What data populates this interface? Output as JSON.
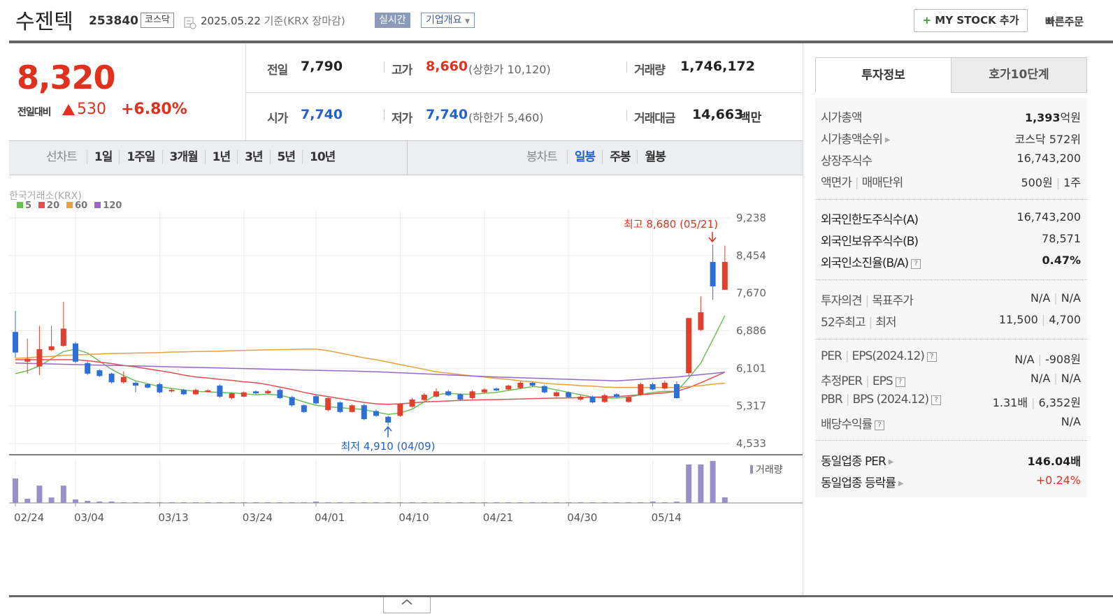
{
  "header": {
    "name": "수젠텍",
    "code": "253840",
    "market": "코스닥",
    "date": "2025.05.22",
    "basis": "기준(KRX 장마감)",
    "realtime_button": "실시간",
    "company_button": "기업개요",
    "mystock_button": "MY STOCK 추가",
    "quick_order": "빠른주문"
  },
  "quote": {
    "price": "8,320",
    "change_label": "전일대비",
    "change": "530",
    "change_rate": "+6.80%",
    "stats": [
      {
        "label": "전일",
        "value": "7,790"
      },
      {
        "label": "고가",
        "value": "8,660",
        "note": "(상한가 10,120)",
        "color": "#e0301e"
      },
      {
        "label": "거래량",
        "value": "1,746,172"
      },
      {
        "label": "시가",
        "value": "7,740",
        "color": "#2562c8"
      },
      {
        "label": "저가",
        "value": "7,740",
        "note": "(하한가 5,460)",
        "color": "#2562c8"
      },
      {
        "label": "거래대금",
        "value": "14,663",
        "unit": "백만"
      }
    ]
  },
  "chart_tabs": {
    "line_label": "선차트",
    "line_periods": [
      "1일",
      "1주일",
      "3개월",
      "1년",
      "3년",
      "5년",
      "10년"
    ],
    "candle_label": "봉차트",
    "candle_periods": [
      "일봉",
      "주봉",
      "월봉"
    ]
  },
  "chart": {
    "type": "candlestick",
    "source": "한국거래소(KRX)",
    "volume_label": "거래량",
    "annotations": {
      "high": "최고 8,680 (05/21)",
      "low": "최저 4,910 (04/09)"
    },
    "up_color": "#e0402d",
    "down_color": "#2e6fd5",
    "volume_color": "#9a8fc8",
    "categories": [
      "02/24",
      null,
      null,
      null,
      null,
      "03/04",
      null,
      null,
      null,
      null,
      null,
      null,
      "03/13",
      null,
      null,
      null,
      null,
      null,
      null,
      "03/24",
      null,
      null,
      null,
      null,
      null,
      "04/01",
      null,
      null,
      null,
      null,
      null,
      null,
      "04/10",
      null,
      null,
      null,
      null,
      null,
      null,
      "04/21",
      null,
      null,
      null,
      null,
      null,
      null,
      "04/30",
      null,
      null,
      null,
      null,
      null,
      null,
      "05/14",
      null,
      null,
      null,
      null,
      null,
      null
    ],
    "open": [
      6860,
      6240,
      6140,
      6480,
      6570,
      6620,
      6210,
      6060,
      5990,
      5810,
      5800,
      5770,
      5770,
      5620,
      5650,
      5560,
      5610,
      5740,
      5480,
      5510,
      5620,
      5580,
      5650,
      5500,
      5330,
      5520,
      5230,
      5390,
      5190,
      5330,
      5210,
      5090,
      5110,
      5300,
      5440,
      5510,
      5620,
      5560,
      5480,
      5600,
      5680,
      5660,
      5690,
      5800,
      5730,
      5520,
      5600,
      5450,
      5510,
      5400,
      5560,
      5400,
      5550,
      5770,
      5680,
      5770,
      6000,
      6900,
      8320,
      7740
    ],
    "close": [
      6430,
      6300,
      6500,
      6560,
      6930,
      6240,
      5990,
      5940,
      5810,
      5920,
      5740,
      5700,
      5600,
      5650,
      5560,
      5650,
      5640,
      5510,
      5580,
      5600,
      5580,
      5630,
      5480,
      5330,
      5190,
      5370,
      5480,
      5190,
      5330,
      5040,
      5110,
      4970,
      5360,
      5450,
      5550,
      5620,
      5540,
      5450,
      5620,
      5660,
      5640,
      5740,
      5800,
      5740,
      5600,
      5600,
      5500,
      5510,
      5390,
      5540,
      5500,
      5500,
      5770,
      5660,
      5800,
      5480,
      7150,
      7270,
      7810,
      8320
    ],
    "high": [
      7300,
      6720,
      6990,
      6990,
      7490,
      6650,
      6240,
      6080,
      6010,
      6040,
      5830,
      5790,
      5800,
      5680,
      5670,
      5680,
      5660,
      5760,
      5600,
      5620,
      5640,
      5660,
      5680,
      5520,
      5350,
      5560,
      5500,
      5410,
      5350,
      5360,
      5240,
      5110,
      5380,
      5480,
      5580,
      5680,
      5650,
      5580,
      5650,
      5690,
      5700,
      5760,
      5830,
      5820,
      5760,
      5630,
      5620,
      5540,
      5530,
      5570,
      5580,
      5530,
      5800,
      5800,
      5850,
      5830,
      7150,
      7600,
      8680,
      8660
    ],
    "low": [
      6320,
      5990,
      5960,
      6460,
      6550,
      6210,
      5960,
      5920,
      5780,
      5780,
      5600,
      5680,
      5580,
      5600,
      5540,
      5540,
      5600,
      5490,
      5450,
      5500,
      5560,
      5570,
      5460,
      5300,
      5170,
      5350,
      5200,
      5170,
      5180,
      5020,
      5090,
      4910,
      5090,
      5280,
      5420,
      5490,
      5520,
      5430,
      5460,
      5580,
      5620,
      5640,
      5680,
      5720,
      5580,
      5500,
      5480,
      5430,
      5370,
      5380,
      5480,
      5380,
      5530,
      5640,
      5660,
      5460,
      5950,
      6880,
      7530,
      7740
    ],
    "volume": [
      7600000,
      1300000,
      5400000,
      1700000,
      5400000,
      1100000,
      650000,
      430000,
      430000,
      220000,
      220000,
      220000,
      220000,
      220000,
      220000,
      220000,
      220000,
      220000,
      220000,
      220000,
      220000,
      220000,
      220000,
      220000,
      220000,
      430000,
      220000,
      220000,
      220000,
      220000,
      220000,
      220000,
      220000,
      220000,
      220000,
      220000,
      220000,
      220000,
      220000,
      220000,
      220000,
      220000,
      220000,
      220000,
      220000,
      220000,
      220000,
      220000,
      220000,
      220000,
      220000,
      220000,
      220000,
      430000,
      220000,
      430000,
      12000000,
      12000000,
      13100000,
      1746172
    ],
    "moving_averages": [
      {
        "name": "5",
        "color": "#6cbf55",
        "values": [
          5990,
          6050,
          6150,
          6300,
          6450,
          6500,
          6420,
          6250,
          6080,
          5950,
          5840,
          5780,
          5720,
          5680,
          5650,
          5620,
          5610,
          5600,
          5590,
          5570,
          5550,
          5560,
          5540,
          5480,
          5400,
          5330,
          5300,
          5280,
          5260,
          5240,
          5190,
          5140,
          5170,
          5250,
          5400,
          5550,
          5580,
          5560,
          5560,
          5580,
          5600,
          5640,
          5680,
          5720,
          5700,
          5650,
          5600,
          5550,
          5500,
          5480,
          5480,
          5500,
          5550,
          5600,
          5620,
          5620,
          5900,
          6210,
          6700,
          7200
        ]
      },
      {
        "name": "20",
        "color": "#e05050",
        "values": [
          6280,
          6280,
          6280,
          6280,
          6280,
          6280,
          6260,
          6230,
          6200,
          6160,
          6130,
          6090,
          6050,
          6010,
          5960,
          5920,
          5900,
          5870,
          5850,
          5820,
          5800,
          5760,
          5710,
          5660,
          5600,
          5550,
          5510,
          5470,
          5430,
          5390,
          5360,
          5350,
          5360,
          5380,
          5400,
          5410,
          5420,
          5430,
          5440,
          5445,
          5450,
          5455,
          5460,
          5470,
          5475,
          5480,
          5485,
          5490,
          5500,
          5505,
          5510,
          5530,
          5550,
          5570,
          5590,
          5620,
          5700,
          5800,
          5910,
          6020
        ]
      },
      {
        "name": "60",
        "color": "#e8a040",
        "values": [
          6310,
          6320,
          6340,
          6350,
          6370,
          6380,
          6390,
          6400,
          6410,
          6415,
          6420,
          6425,
          6430,
          6440,
          6445,
          6450,
          6455,
          6460,
          6470,
          6475,
          6480,
          6485,
          6490,
          6495,
          6500,
          6500,
          6470,
          6420,
          6370,
          6320,
          6280,
          6230,
          6180,
          6130,
          6080,
          6030,
          6000,
          5970,
          5940,
          5920,
          5890,
          5870,
          5840,
          5820,
          5790,
          5770,
          5760,
          5740,
          5730,
          5710,
          5700,
          5700,
          5700,
          5700,
          5700,
          5700,
          5720,
          5740,
          5770,
          5790
        ]
      },
      {
        "name": "120",
        "color": "#9966cc",
        "values": [
          6210,
          6204,
          6198,
          6192,
          6186,
          6180,
          6174,
          6168,
          6162,
          6156,
          6150,
          6144,
          6138,
          6132,
          6126,
          6120,
          6114,
          6108,
          6102,
          6096,
          6090,
          6084,
          6078,
          6072,
          6066,
          6060,
          6054,
          6048,
          6042,
          6036,
          6030,
          6019,
          6008,
          5997,
          5986,
          5975,
          5964,
          5953,
          5942,
          5931,
          5920,
          5912,
          5904,
          5896,
          5888,
          5880,
          5872,
          5864,
          5856,
          5848,
          5840,
          5856,
          5872,
          5888,
          5904,
          5920,
          5945,
          5970,
          5995,
          6020
        ]
      }
    ],
    "ylim": [
      4342,
      9413
    ],
    "yticks": [
      {
        "value": 9238,
        "label": "9,238"
      },
      {
        "value": 8454,
        "label": "8,454"
      },
      {
        "value": 7670,
        "label": "7,670"
      },
      {
        "value": 6886,
        "label": "6,886"
      },
      {
        "value": 6101,
        "label": "6,101"
      },
      {
        "value": 5317,
        "label": "5,317"
      },
      {
        "value": 4533,
        "label": "4,533"
      }
    ],
    "volume_ylim": [
      0,
      13500000
    ],
    "grid": true
  },
  "side_tabs": [
    "투자정보",
    "호가10단계"
  ],
  "investment_info": {
    "groups": [
      [
        {
          "labels": [
            "시가총액"
          ],
          "values": [
            "1,393"
          ],
          "unit": "억원",
          "strong": true
        },
        {
          "labels": [
            "시가총액순위"
          ],
          "arrow": true,
          "values": [
            "코스닥 572위"
          ]
        },
        {
          "labels": [
            "상장주식수"
          ],
          "values": [
            "16,743,200"
          ]
        },
        {
          "labels": [
            "액면가",
            "매매단위"
          ],
          "values": [
            "500원",
            "1주"
          ]
        }
      ],
      [
        {
          "labels": [
            "외국인한도주식수(A)"
          ],
          "values": [
            "16,743,200"
          ]
        },
        {
          "labels": [
            "외국인보유주식수(B)"
          ],
          "values": [
            "78,571"
          ]
        },
        {
          "labels": [
            "외국인소진율(B/A)"
          ],
          "help": true,
          "values": [
            "0.47%"
          ],
          "strong": true
        }
      ],
      [
        {
          "labels": [
            "투자의견",
            "목표주가"
          ],
          "values": [
            "N/A",
            "N/A"
          ]
        },
        {
          "labels": [
            "52주최고",
            "최저"
          ],
          "values": [
            "11,500",
            "4,700"
          ]
        }
      ],
      [
        {
          "labels": [
            "PER",
            "EPS(2024.12)"
          ],
          "help": true,
          "values": [
            "N/A",
            "-908원"
          ]
        },
        {
          "labels": [
            "추정PER",
            "EPS"
          ],
          "help": true,
          "values": [
            "N/A",
            "N/A"
          ]
        },
        {
          "labels": [
            "PBR",
            "BPS (2024.12)"
          ],
          "help": true,
          "values": [
            "1.31배",
            "6,352원"
          ]
        },
        {
          "labels": [
            "배당수익률"
          ],
          "help": true,
          "values": [
            "N/A"
          ]
        }
      ],
      [
        {
          "labels": [
            "동일업종 PER"
          ],
          "arrow": true,
          "values": [
            "146.04배"
          ],
          "strong": true
        },
        {
          "labels": [
            "동일업종 등락률"
          ],
          "arrow": true,
          "values": [
            "+0.24%"
          ],
          "color": "#e0301e"
        }
      ]
    ]
  }
}
